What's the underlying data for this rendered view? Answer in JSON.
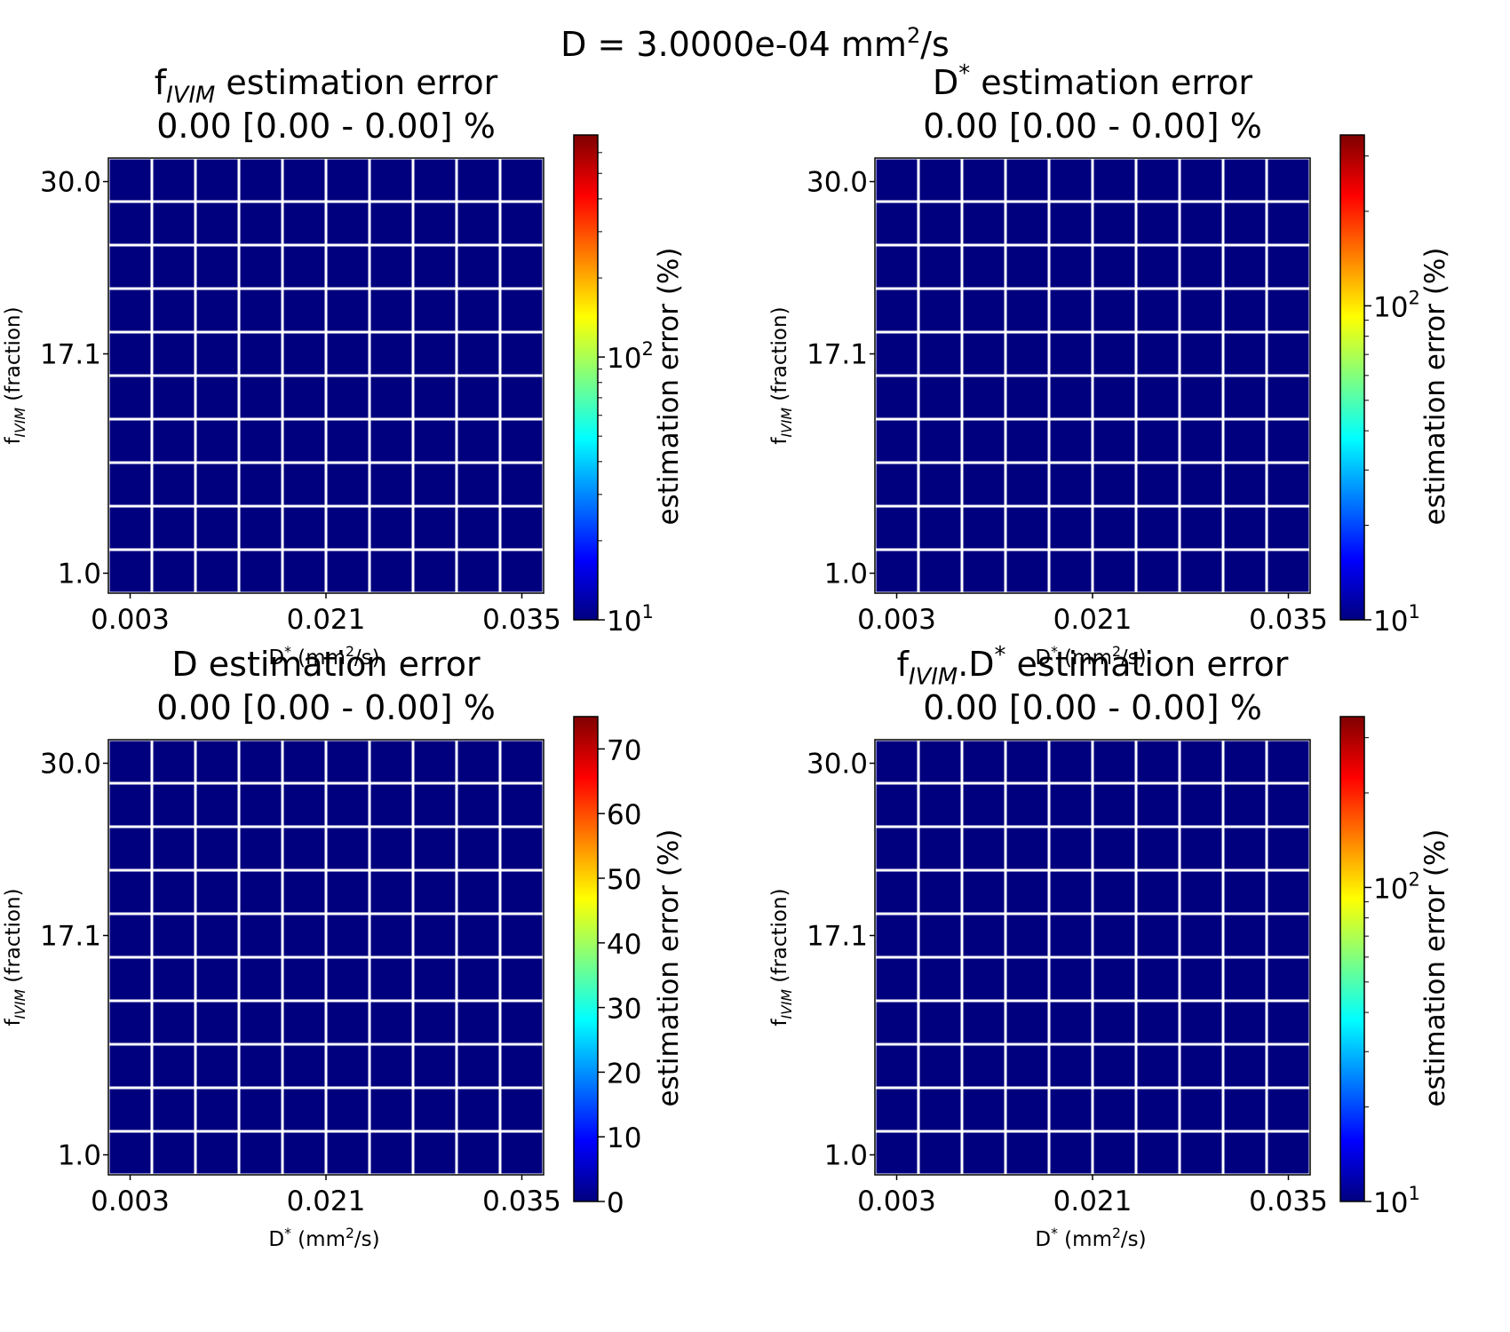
{
  "figure": {
    "suptitle_main": "D = 3.0000e-04 mm",
    "suptitle_sup": "2",
    "suptitle_tail": "/s"
  },
  "colors": {
    "cell": "#00007f",
    "grid": "#ffffff",
    "axes": "#000000",
    "jet": [
      "#00007f",
      "#0000ff",
      "#007fff",
      "#00ffff",
      "#7fff7f",
      "#ffff00",
      "#ff7f00",
      "#ff0000",
      "#7f0000"
    ]
  },
  "chart_data": [
    {
      "type": "heatmap",
      "title_parts": [
        {
          "t": "f"
        },
        {
          "t": "IVIM",
          "sub": true
        },
        {
          "t": " estimation error"
        }
      ],
      "subtitle": "0.00 [0.00 - 0.00] %",
      "xlabel_parts": [
        {
          "t": "D"
        },
        {
          "t": "*",
          "sup": true
        },
        {
          "t": " (mm"
        },
        {
          "t": "2",
          "sup": true
        },
        {
          "t": "/s)"
        }
      ],
      "ylabel_parts": [
        {
          "t": "f"
        },
        {
          "t": "IVIM",
          "sub": true
        },
        {
          "t": " (fraction)"
        }
      ],
      "x_ticks": [
        "0.003",
        "0.021",
        "0.035"
      ],
      "y_ticks": [
        "30.0",
        "17.1",
        "1.0"
      ],
      "n_cols": 10,
      "n_rows": 10,
      "values": [
        [
          0,
          0,
          0,
          0,
          0,
          0,
          0,
          0,
          0,
          0
        ],
        [
          0,
          0,
          0,
          0,
          0,
          0,
          0,
          0,
          0,
          0
        ],
        [
          0,
          0,
          0,
          0,
          0,
          0,
          0,
          0,
          0,
          0
        ],
        [
          0,
          0,
          0,
          0,
          0,
          0,
          0,
          0,
          0,
          0
        ],
        [
          0,
          0,
          0,
          0,
          0,
          0,
          0,
          0,
          0,
          0
        ],
        [
          0,
          0,
          0,
          0,
          0,
          0,
          0,
          0,
          0,
          0
        ],
        [
          0,
          0,
          0,
          0,
          0,
          0,
          0,
          0,
          0,
          0
        ],
        [
          0,
          0,
          0,
          0,
          0,
          0,
          0,
          0,
          0,
          0
        ],
        [
          0,
          0,
          0,
          0,
          0,
          0,
          0,
          0,
          0,
          0
        ],
        [
          0,
          0,
          0,
          0,
          0,
          0,
          0,
          0,
          0,
          0
        ]
      ],
      "colorbar": {
        "scale": "log",
        "range": [
          10,
          700
        ],
        "label": "estimation error (%)",
        "ticks": [
          {
            "base": "10",
            "exp": "1",
            "value": 10
          },
          {
            "base": "10",
            "exp": "2",
            "value": 100
          }
        ]
      }
    },
    {
      "type": "heatmap",
      "title_parts": [
        {
          "t": "D"
        },
        {
          "t": "*",
          "sup": true
        },
        {
          "t": " estimation error"
        }
      ],
      "subtitle": "0.00 [0.00 - 0.00] %",
      "xlabel_parts": [
        {
          "t": "D"
        },
        {
          "t": "*",
          "sup": true
        },
        {
          "t": " (mm"
        },
        {
          "t": "2",
          "sup": true
        },
        {
          "t": "/s)"
        }
      ],
      "ylabel_parts": [
        {
          "t": "f"
        },
        {
          "t": "IVIM",
          "sub": true
        },
        {
          "t": " (fraction)"
        }
      ],
      "x_ticks": [
        "0.003",
        "0.021",
        "0.035"
      ],
      "y_ticks": [
        "30.0",
        "17.1",
        "1.0"
      ],
      "n_cols": 10,
      "n_rows": 10,
      "values": [
        [
          0,
          0,
          0,
          0,
          0,
          0,
          0,
          0,
          0,
          0
        ],
        [
          0,
          0,
          0,
          0,
          0,
          0,
          0,
          0,
          0,
          0
        ],
        [
          0,
          0,
          0,
          0,
          0,
          0,
          0,
          0,
          0,
          0
        ],
        [
          0,
          0,
          0,
          0,
          0,
          0,
          0,
          0,
          0,
          0
        ],
        [
          0,
          0,
          0,
          0,
          0,
          0,
          0,
          0,
          0,
          0
        ],
        [
          0,
          0,
          0,
          0,
          0,
          0,
          0,
          0,
          0,
          0
        ],
        [
          0,
          0,
          0,
          0,
          0,
          0,
          0,
          0,
          0,
          0
        ],
        [
          0,
          0,
          0,
          0,
          0,
          0,
          0,
          0,
          0,
          0
        ],
        [
          0,
          0,
          0,
          0,
          0,
          0,
          0,
          0,
          0,
          0
        ],
        [
          0,
          0,
          0,
          0,
          0,
          0,
          0,
          0,
          0,
          0
        ]
      ],
      "colorbar": {
        "scale": "log",
        "range": [
          10,
          350
        ],
        "label": "estimation error (%)",
        "ticks": [
          {
            "base": "10",
            "exp": "1",
            "value": 10
          },
          {
            "base": "10",
            "exp": "2",
            "value": 100
          }
        ]
      }
    },
    {
      "type": "heatmap",
      "title_parts": [
        {
          "t": "D estimation error"
        }
      ],
      "subtitle": "0.00 [0.00 - 0.00] %",
      "xlabel_parts": [
        {
          "t": "D"
        },
        {
          "t": "*",
          "sup": true
        },
        {
          "t": " (mm"
        },
        {
          "t": "2",
          "sup": true
        },
        {
          "t": "/s)"
        }
      ],
      "ylabel_parts": [
        {
          "t": "f"
        },
        {
          "t": "IVIM",
          "sub": true
        },
        {
          "t": " (fraction)"
        }
      ],
      "x_ticks": [
        "0.003",
        "0.021",
        "0.035"
      ],
      "y_ticks": [
        "30.0",
        "17.1",
        "1.0"
      ],
      "n_cols": 10,
      "n_rows": 10,
      "values": [
        [
          0,
          0,
          0,
          0,
          0,
          0,
          0,
          0,
          0,
          0
        ],
        [
          0,
          0,
          0,
          0,
          0,
          0,
          0,
          0,
          0,
          0
        ],
        [
          0,
          0,
          0,
          0,
          0,
          0,
          0,
          0,
          0,
          0
        ],
        [
          0,
          0,
          0,
          0,
          0,
          0,
          0,
          0,
          0,
          0
        ],
        [
          0,
          0,
          0,
          0,
          0,
          0,
          0,
          0,
          0,
          0
        ],
        [
          0,
          0,
          0,
          0,
          0,
          0,
          0,
          0,
          0,
          0
        ],
        [
          0,
          0,
          0,
          0,
          0,
          0,
          0,
          0,
          0,
          0
        ],
        [
          0,
          0,
          0,
          0,
          0,
          0,
          0,
          0,
          0,
          0
        ],
        [
          0,
          0,
          0,
          0,
          0,
          0,
          0,
          0,
          0,
          0
        ],
        [
          0,
          0,
          0,
          0,
          0,
          0,
          0,
          0,
          0,
          0
        ]
      ],
      "colorbar": {
        "scale": "linear",
        "range": [
          0,
          75
        ],
        "label": "estimation error (%)",
        "ticks": [
          {
            "base": "0",
            "value": 0
          },
          {
            "base": "10",
            "value": 10
          },
          {
            "base": "20",
            "value": 20
          },
          {
            "base": "30",
            "value": 30
          },
          {
            "base": "40",
            "value": 40
          },
          {
            "base": "50",
            "value": 50
          },
          {
            "base": "60",
            "value": 60
          },
          {
            "base": "70",
            "value": 70
          }
        ]
      }
    },
    {
      "type": "heatmap",
      "title_parts": [
        {
          "t": "f"
        },
        {
          "t": "IVIM",
          "sub": true
        },
        {
          "t": ".D"
        },
        {
          "t": "*",
          "sup": true
        },
        {
          "t": " estimation error"
        }
      ],
      "subtitle": "0.00 [0.00 - 0.00] %",
      "xlabel_parts": [
        {
          "t": "D"
        },
        {
          "t": "*",
          "sup": true
        },
        {
          "t": " (mm"
        },
        {
          "t": "2",
          "sup": true
        },
        {
          "t": "/s)"
        }
      ],
      "ylabel_parts": [
        {
          "t": "f"
        },
        {
          "t": "IVIM",
          "sub": true
        },
        {
          "t": " (fraction)"
        }
      ],
      "x_ticks": [
        "0.003",
        "0.021",
        "0.035"
      ],
      "y_ticks": [
        "30.0",
        "17.1",
        "1.0"
      ],
      "n_cols": 10,
      "n_rows": 10,
      "values": [
        [
          0,
          0,
          0,
          0,
          0,
          0,
          0,
          0,
          0,
          0
        ],
        [
          0,
          0,
          0,
          0,
          0,
          0,
          0,
          0,
          0,
          0
        ],
        [
          0,
          0,
          0,
          0,
          0,
          0,
          0,
          0,
          0,
          0
        ],
        [
          0,
          0,
          0,
          0,
          0,
          0,
          0,
          0,
          0,
          0
        ],
        [
          0,
          0,
          0,
          0,
          0,
          0,
          0,
          0,
          0,
          0
        ],
        [
          0,
          0,
          0,
          0,
          0,
          0,
          0,
          0,
          0,
          0
        ],
        [
          0,
          0,
          0,
          0,
          0,
          0,
          0,
          0,
          0,
          0
        ],
        [
          0,
          0,
          0,
          0,
          0,
          0,
          0,
          0,
          0,
          0
        ],
        [
          0,
          0,
          0,
          0,
          0,
          0,
          0,
          0,
          0,
          0
        ],
        [
          0,
          0,
          0,
          0,
          0,
          0,
          0,
          0,
          0,
          0
        ]
      ],
      "colorbar": {
        "scale": "log",
        "range": [
          10,
          350
        ],
        "label": "estimation error (%)",
        "ticks": [
          {
            "base": "10",
            "exp": "1",
            "value": 10
          },
          {
            "base": "10",
            "exp": "2",
            "value": 100
          }
        ]
      }
    }
  ]
}
